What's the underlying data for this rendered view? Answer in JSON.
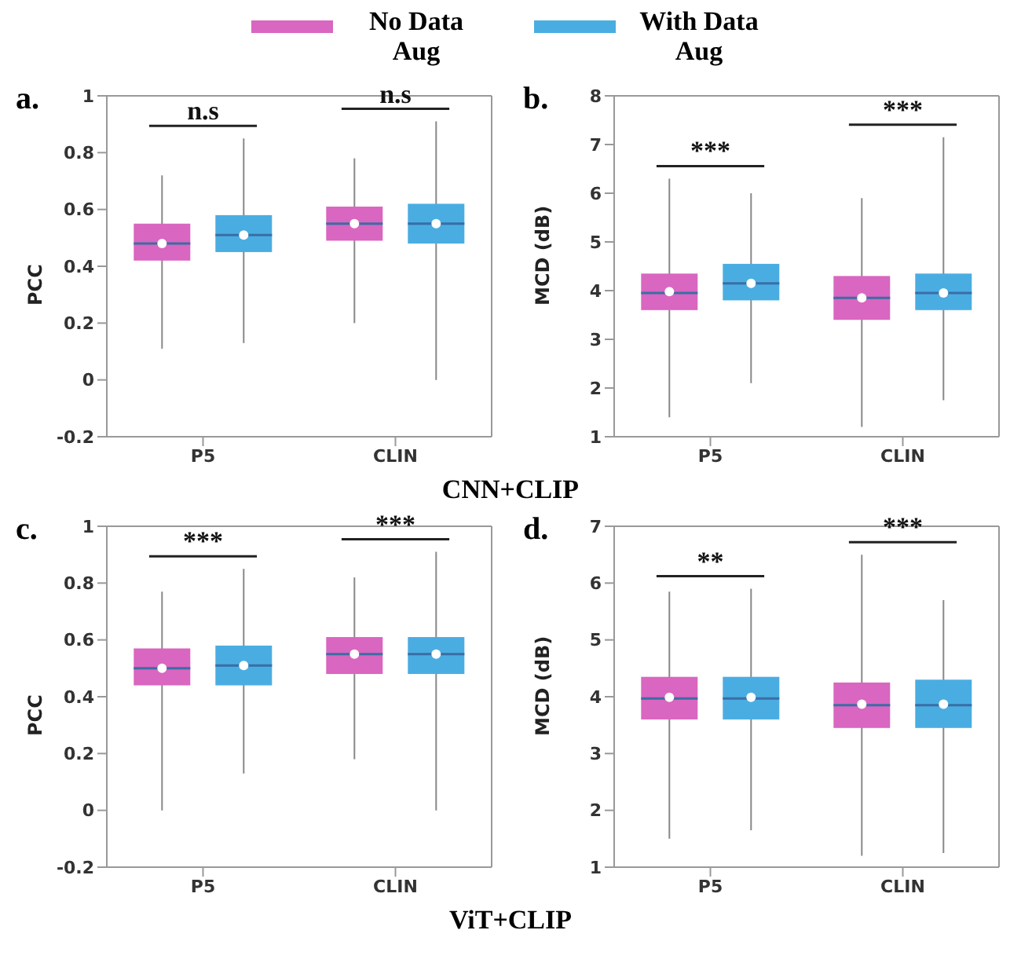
{
  "chart_data": [
    {
      "type": "box",
      "title": "a.",
      "subtitle": "CNN+CLIP",
      "ylabel": "PCC",
      "categories": [
        "P5",
        "CLIN"
      ],
      "ylim": [
        -0.2,
        1
      ],
      "yticks": [
        -0.2,
        0,
        0.2,
        0.4,
        0.6,
        0.8,
        1
      ],
      "legend": "top",
      "series": [
        {
          "name": "No Data Aug",
          "color": "#d966c0",
          "boxes": [
            {
              "low": 0.11,
              "q1": 0.42,
              "median": 0.48,
              "q3": 0.55,
              "high": 0.72,
              "mean": 0.48
            },
            {
              "low": 0.2,
              "q1": 0.49,
              "median": 0.55,
              "q3": 0.61,
              "high": 0.78,
              "mean": 0.55
            }
          ]
        },
        {
          "name": "With Data Aug",
          "color": "#4aade2",
          "boxes": [
            {
              "low": 0.13,
              "q1": 0.45,
              "median": 0.51,
              "q3": 0.58,
              "high": 0.85,
              "mean": 0.51
            },
            {
              "low": 0,
              "q1": 0.48,
              "median": 0.55,
              "q3": 0.62,
              "high": 0.91,
              "mean": 0.55
            }
          ]
        }
      ],
      "annotations": [
        "n.s",
        "n.s"
      ]
    },
    {
      "type": "box",
      "title": "b.",
      "ylabel": "MCD (dB)",
      "categories": [
        "P5",
        "CLIN"
      ],
      "ylim": [
        1,
        8
      ],
      "yticks": [
        1,
        2,
        3,
        4,
        5,
        6,
        7,
        8
      ],
      "series": [
        {
          "color": "#d966c0",
          "boxes": [
            {
              "low": 1.4,
              "q1": 3.6,
              "median": 3.95,
              "q3": 4.35,
              "high": 6.3,
              "mean": 3.98
            },
            {
              "low": 1.2,
              "q1": 3.4,
              "median": 3.85,
              "q3": 4.3,
              "high": 5.9,
              "mean": 3.85
            }
          ]
        },
        {
          "color": "#4aade2",
          "boxes": [
            {
              "low": 2.1,
              "q1": 3.8,
              "median": 4.15,
              "q3": 4.55,
              "high": 6,
              "mean": 4.15
            },
            {
              "low": 1.75,
              "q1": 3.6,
              "median": 3.95,
              "q3": 4.35,
              "high": 7.15,
              "mean": 3.95
            }
          ]
        }
      ],
      "annotations": [
        "***",
        "***"
      ]
    },
    {
      "type": "box",
      "title": "c.",
      "subtitle": "ViT+CLIP",
      "ylabel": "PCC",
      "categories": [
        "P5",
        "CLIN"
      ],
      "ylim": [
        -0.2,
        1
      ],
      "yticks": [
        -0.2,
        0,
        0.2,
        0.4,
        0.6,
        0.8,
        1
      ],
      "series": [
        {
          "color": "#d966c0",
          "boxes": [
            {
              "low": 0,
              "q1": 0.44,
              "median": 0.5,
              "q3": 0.57,
              "high": 0.77,
              "mean": 0.5
            },
            {
              "low": 0.18,
              "q1": 0.48,
              "median": 0.55,
              "q3": 0.61,
              "high": 0.82,
              "mean": 0.55
            }
          ]
        },
        {
          "color": "#4aade2",
          "boxes": [
            {
              "low": 0.13,
              "q1": 0.44,
              "median": 0.51,
              "q3": 0.58,
              "high": 0.85,
              "mean": 0.51
            },
            {
              "low": 0,
              "q1": 0.48,
              "median": 0.55,
              "q3": 0.61,
              "high": 0.91,
              "mean": 0.55
            }
          ]
        }
      ],
      "annotations": [
        "***",
        "***"
      ]
    },
    {
      "type": "box",
      "title": "d.",
      "ylabel": "MCD (dB)",
      "categories": [
        "P5",
        "CLIN"
      ],
      "ylim": [
        1,
        7
      ],
      "yticks": [
        1,
        2,
        3,
        4,
        5,
        6,
        7
      ],
      "series": [
        {
          "color": "#d966c0",
          "boxes": [
            {
              "low": 1.5,
              "q1": 3.6,
              "median": 3.97,
              "q3": 4.35,
              "high": 5.85,
              "mean": 3.99
            },
            {
              "low": 1.2,
              "q1": 3.45,
              "median": 3.85,
              "q3": 4.25,
              "high": 6.5,
              "mean": 3.87
            }
          ]
        },
        {
          "color": "#4aade2",
          "boxes": [
            {
              "low": 1.65,
              "q1": 3.6,
              "median": 3.97,
              "q3": 4.35,
              "high": 5.9,
              "mean": 3.99
            },
            {
              "low": 1.25,
              "q1": 3.45,
              "median": 3.85,
              "q3": 4.3,
              "high": 5.7,
              "mean": 3.87
            }
          ]
        }
      ],
      "annotations": [
        "**",
        "***"
      ]
    }
  ]
}
